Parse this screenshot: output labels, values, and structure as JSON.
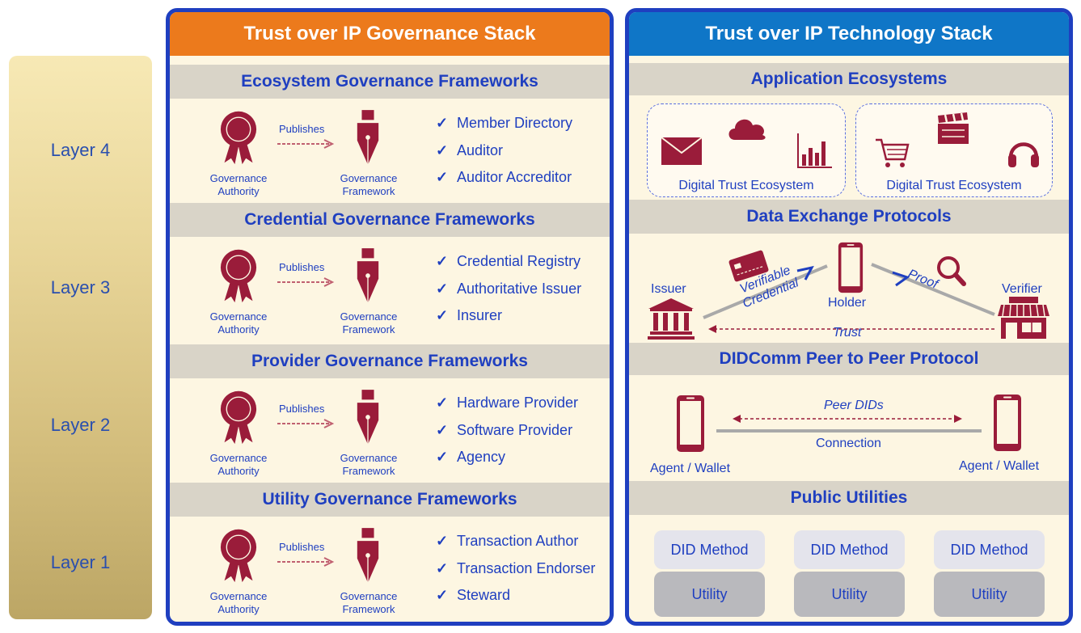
{
  "layers": [
    "Layer 4",
    "Layer 3",
    "Layer 2",
    "Layer 1"
  ],
  "governance": {
    "title": "Trust over IP Governance Stack",
    "publishes": "Publishes",
    "authority": [
      "Governance",
      "Authority"
    ],
    "framework": [
      "Governance",
      "Framework"
    ],
    "sections": [
      {
        "title": "Ecosystem Governance Frameworks",
        "items": [
          "Member Directory",
          "Auditor",
          "Auditor Accreditor"
        ]
      },
      {
        "title": "Credential Governance Frameworks",
        "items": [
          "Credential Registry",
          "Authoritative Issuer",
          "Insurer"
        ]
      },
      {
        "title": "Provider Governance Frameworks",
        "items": [
          "Hardware Provider",
          "Software Provider",
          "Agency"
        ]
      },
      {
        "title": "Utility Governance Frameworks",
        "items": [
          "Transaction Author",
          "Transaction Endorser",
          "Steward"
        ]
      }
    ]
  },
  "technology": {
    "title": "Trust over IP Technology Stack",
    "sections": {
      "app": {
        "title": "Application Ecosystems",
        "ecosystems": [
          "Digital Trust Ecosystem",
          "Digital Trust Ecosystem"
        ]
      },
      "exchange": {
        "title": "Data Exchange Protocols",
        "issuer": "Issuer",
        "holder": "Holder",
        "verifier": "Verifier",
        "credential": [
          "Verifiable",
          "Credential"
        ],
        "proof": "Proof",
        "trust": "Trust"
      },
      "didcomm": {
        "title": "DIDComm Peer to Peer Protocol",
        "peer_dids": "Peer DIDs",
        "connection": "Connection",
        "agent_left": "Agent / Wallet",
        "agent_right": "Agent / Wallet"
      },
      "utilities": {
        "title": "Public Utilities",
        "did_method": [
          "DID Method",
          "DID Method",
          "DID Method"
        ],
        "utility": [
          "Utility",
          "Utility",
          "Utility"
        ]
      }
    }
  },
  "colors": {
    "governance_header": "#ec7a1c",
    "technology_header": "#0f76c7",
    "border": "#1f3fc0",
    "icon": "#9a1c3a",
    "text": "#1f3fc0"
  }
}
